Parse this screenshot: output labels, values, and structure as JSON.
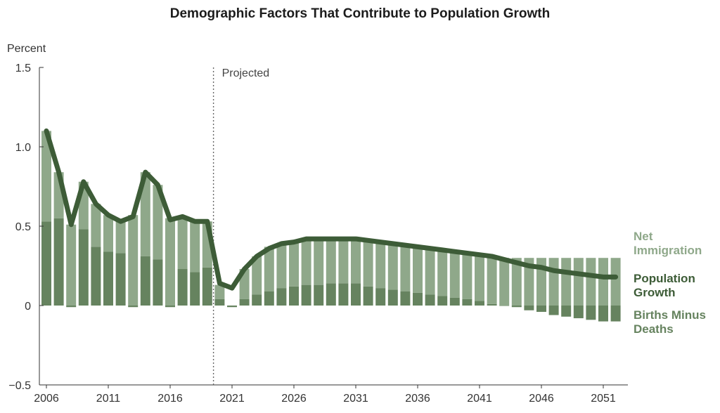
{
  "chart_data": {
    "type": "bar+line",
    "title": "Demographic Factors That Contribute to Population Growth",
    "ylabel": "Percent",
    "ylim": [
      -0.5,
      1.5
    ],
    "yticks": [
      "1.5",
      "1.0",
      "0.5",
      "0",
      "−0.5"
    ],
    "ytick_values": [
      1.5,
      1.0,
      0.5,
      0,
      -0.5
    ],
    "xtick_years": [
      2006,
      2011,
      2016,
      2021,
      2026,
      2031,
      2036,
      2041,
      2046,
      2051
    ],
    "projection_start": 2020,
    "projection_label": "Projected",
    "years": [
      2006,
      2007,
      2008,
      2009,
      2010,
      2011,
      2012,
      2013,
      2014,
      2015,
      2016,
      2017,
      2018,
      2019,
      2020,
      2021,
      2022,
      2023,
      2024,
      2025,
      2026,
      2027,
      2028,
      2029,
      2030,
      2031,
      2032,
      2033,
      2034,
      2035,
      2036,
      2037,
      2038,
      2039,
      2040,
      2041,
      2042,
      2043,
      2044,
      2045,
      2046,
      2047,
      2048,
      2049,
      2050,
      2051,
      2052
    ],
    "series": [
      {
        "name": "Births Minus Deaths",
        "color": "#66835f",
        "values": [
          0.53,
          0.55,
          -0.01,
          0.48,
          0.37,
          0.34,
          0.33,
          -0.01,
          0.31,
          0.29,
          -0.01,
          0.23,
          0.21,
          0.24,
          0.04,
          -0.01,
          0.04,
          0.07,
          0.09,
          0.11,
          0.12,
          0.13,
          0.13,
          0.14,
          0.14,
          0.14,
          0.12,
          0.11,
          0.1,
          0.09,
          0.08,
          0.07,
          0.06,
          0.05,
          0.04,
          0.03,
          0.01,
          0.0,
          -0.01,
          -0.03,
          -0.04,
          -0.06,
          -0.07,
          -0.08,
          -0.09,
          -0.1,
          -0.1
        ]
      },
      {
        "name": "Net Immigration",
        "color": "#8fa88a",
        "values": [
          0.57,
          0.29,
          0.51,
          0.3,
          0.27,
          0.23,
          0.21,
          0.57,
          0.53,
          0.47,
          0.55,
          0.33,
          0.32,
          0.29,
          0.09,
          0.0,
          0.19,
          0.24,
          0.28,
          0.28,
          0.28,
          0.28,
          0.29,
          0.28,
          0.28,
          0.28,
          0.29,
          0.3,
          0.3,
          0.3,
          0.3,
          0.3,
          0.3,
          0.3,
          0.3,
          0.3,
          0.3,
          0.3,
          0.3,
          0.3,
          0.3,
          0.3,
          0.3,
          0.3,
          0.3,
          0.3,
          0.3
        ]
      },
      {
        "name": "Population Growth",
        "color": "#3d5c37",
        "values": [
          1.1,
          0.84,
          0.51,
          0.78,
          0.64,
          0.57,
          0.53,
          0.56,
          0.84,
          0.76,
          0.54,
          0.56,
          0.53,
          0.53,
          0.14,
          0.11,
          0.23,
          0.31,
          0.36,
          0.39,
          0.4,
          0.42,
          0.42,
          0.42,
          0.42,
          0.42,
          0.41,
          0.4,
          0.39,
          0.38,
          0.37,
          0.36,
          0.35,
          0.34,
          0.33,
          0.32,
          0.31,
          0.29,
          0.27,
          0.25,
          0.24,
          0.22,
          0.21,
          0.2,
          0.19,
          0.18,
          0.18
        ]
      }
    ],
    "legend": [
      "Net Immigration",
      "Population Growth",
      "Births Minus Deaths"
    ],
    "legend_lines": {
      "net": [
        "Net",
        "Immigration"
      ],
      "pop": [
        "Population",
        "Growth"
      ],
      "births": [
        "Births Minus",
        "Deaths"
      ]
    },
    "legend_placement": "right",
    "grid": false
  }
}
